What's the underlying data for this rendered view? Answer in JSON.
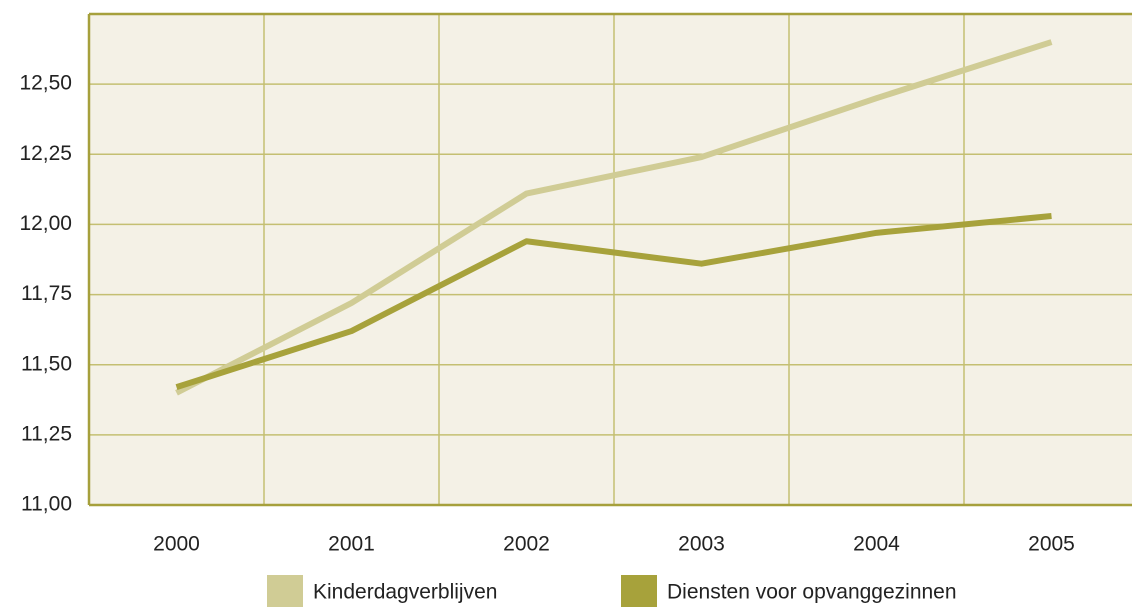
{
  "chart_data": {
    "type": "line",
    "categories": [
      "2000",
      "2001",
      "2002",
      "2003",
      "2004",
      "2005"
    ],
    "series": [
      {
        "name": "Kinderdagverblijven",
        "color": "#d0cc95",
        "values": [
          11.4,
          11.72,
          12.11,
          12.24,
          12.45,
          12.65
        ]
      },
      {
        "name": "Diensten voor opvanggezinnen",
        "color": "#a7a23b",
        "values": [
          11.42,
          11.62,
          11.94,
          11.86,
          11.97,
          12.03
        ]
      }
    ],
    "ylim": [
      11.0,
      12.75
    ],
    "yticks": [
      {
        "value": 11.0,
        "label": "11,00"
      },
      {
        "value": 11.25,
        "label": "11,25"
      },
      {
        "value": 11.5,
        "label": "11,50"
      },
      {
        "value": 11.75,
        "label": "11,75"
      },
      {
        "value": 12.0,
        "label": "12,00"
      },
      {
        "value": 12.25,
        "label": "12,25"
      },
      {
        "value": 12.5,
        "label": "12,50"
      }
    ],
    "grid": true,
    "legend": "bottom"
  }
}
